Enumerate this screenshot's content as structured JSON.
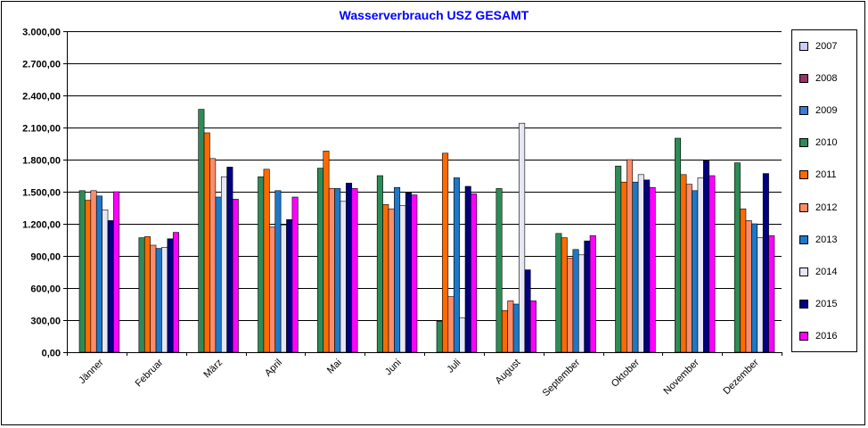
{
  "chart_data": {
    "type": "bar",
    "title": "Wasserverbrauch  USZ GESAMT",
    "xlabel": "",
    "ylabel": "",
    "ylim": [
      0,
      3000
    ],
    "yticks": [
      "0,00",
      "300,00",
      "600,00",
      "900,00",
      "1.200,00",
      "1.500,00",
      "1.800,00",
      "2.100,00",
      "2.400,00",
      "2.700,00",
      "3.000,00"
    ],
    "grid": true,
    "legend_position": "right",
    "categories": [
      "Jänner",
      "Februar",
      "März",
      "April",
      "Mai",
      "Juni",
      "Juli",
      "August",
      "September",
      "Oktober",
      "November",
      "Dezember"
    ],
    "series": [
      {
        "name": "2007",
        "color": "#ccccff",
        "values": [
          null,
          null,
          null,
          null,
          null,
          null,
          null,
          null,
          null,
          null,
          null,
          null
        ]
      },
      {
        "name": "2008",
        "color": "#993366",
        "values": [
          null,
          null,
          null,
          null,
          null,
          null,
          null,
          null,
          null,
          null,
          null,
          null
        ]
      },
      {
        "name": "2009",
        "color": "#3a7bd5",
        "values": [
          null,
          null,
          null,
          null,
          null,
          null,
          null,
          null,
          null,
          null,
          null,
          null
        ]
      },
      {
        "name": "2010",
        "color": "#2e8b57",
        "values": [
          1510,
          1070,
          2270,
          1640,
          1720,
          1650,
          290,
          1530,
          1110,
          1740,
          2000,
          1770
        ]
      },
      {
        "name": "2011",
        "color": "#ff6a00",
        "values": [
          1420,
          1080,
          2050,
          1710,
          1880,
          1380,
          1860,
          390,
          1070,
          1590,
          1660,
          1340
        ]
      },
      {
        "name": "2012",
        "color": "#ff8c69",
        "values": [
          1510,
          1000,
          1810,
          1170,
          1530,
          1340,
          520,
          480,
          880,
          1800,
          1570,
          1230
        ]
      },
      {
        "name": "2013",
        "color": "#1e78c8",
        "values": [
          1460,
          970,
          1450,
          1510,
          1530,
          1540,
          1630,
          450,
          960,
          1590,
          1510,
          1200
        ]
      },
      {
        "name": "2014",
        "color": "#e6e6f5",
        "values": [
          1330,
          980,
          1640,
          1190,
          1410,
          1370,
          320,
          2140,
          910,
          1660,
          1630,
          1070
        ]
      },
      {
        "name": "2015",
        "color": "#000080",
        "values": [
          1230,
          1060,
          1730,
          1240,
          1580,
          1490,
          1550,
          770,
          1040,
          1610,
          1790,
          1670
        ]
      },
      {
        "name": "2016",
        "color": "#ff00ff",
        "values": [
          1500,
          1120,
          1430,
          1450,
          1530,
          1470,
          1480,
          480,
          1090,
          1540,
          1650,
          1090
        ]
      }
    ]
  }
}
